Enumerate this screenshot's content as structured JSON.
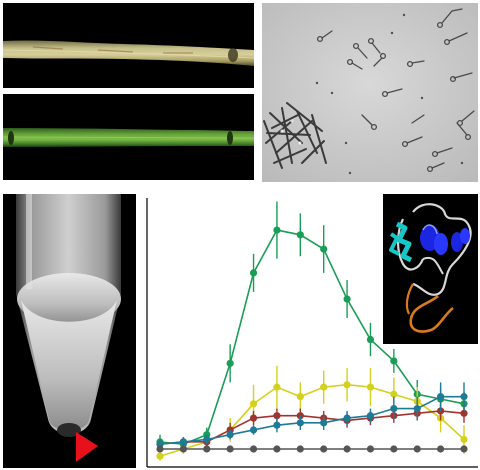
{
  "panels": {
    "top_left_stem": "dried-stem-segment",
    "middle_left_stem": "green-stem-segment",
    "top_right": "microscopy-hyphae",
    "bottom_left": "centrifuge-tube-with-pellet",
    "bottom_right": "line-chart-with-protein-inset"
  },
  "colors": {
    "green": "#1a9d57",
    "yellow": "#d4d11e",
    "red": "#a13331",
    "blue": "#1f7a96",
    "gray": "#555555",
    "arrow": "#e8111b"
  },
  "chart_data": {
    "type": "line",
    "x": [
      1,
      2,
      3,
      4,
      5,
      6,
      7,
      8,
      9,
      10,
      11,
      12,
      13,
      14
    ],
    "ylim": [
      0,
      10
    ],
    "grid": false,
    "series": [
      {
        "color": "green",
        "values": [
          0.3,
          0.2,
          0.6,
          3.6,
          7.4,
          9.2,
          9.0,
          8.4,
          6.3,
          4.6,
          3.7,
          2.3,
          2.1,
          1.9
        ],
        "errors": [
          0.3,
          0.2,
          0.3,
          0.8,
          0.8,
          1.2,
          0.9,
          1.0,
          0.8,
          0.7,
          0.5,
          0.6,
          0.5,
          0.5
        ]
      },
      {
        "color": "yellow",
        "values": [
          -0.3,
          0,
          0.3,
          0.8,
          1.9,
          2.6,
          2.2,
          2.6,
          2.7,
          2.6,
          2.3,
          2.0,
          1.3,
          0.4
        ],
        "errors": [
          0.2,
          0.2,
          0.2,
          0.5,
          0.8,
          0.9,
          0.6,
          0.7,
          0.7,
          0.8,
          0.7,
          0.6,
          0.6,
          0.6
        ]
      },
      {
        "color": "red",
        "values": [
          0.2,
          0.3,
          0.3,
          0.8,
          1.3,
          1.4,
          1.4,
          1.3,
          1.2,
          1.3,
          1.4,
          1.5,
          1.6,
          1.5
        ],
        "errors": [
          0.2,
          0.2,
          0.2,
          0.3,
          0.3,
          0.3,
          0.3,
          0.3,
          0.3,
          0.3,
          0.3,
          0.3,
          0.4,
          0.4
        ]
      },
      {
        "color": "blue",
        "values": [
          0.2,
          0.3,
          0.4,
          0.6,
          0.8,
          1.0,
          1.1,
          1.1,
          1.3,
          1.4,
          1.7,
          1.7,
          2.2,
          2.2
        ],
        "errors": [
          0.2,
          0.2,
          0.2,
          0.2,
          0.2,
          0.3,
          0.3,
          0.3,
          0.3,
          0.3,
          0.5,
          0.5,
          0.6,
          0.6
        ]
      },
      {
        "color": "gray",
        "values": [
          0,
          0,
          0,
          0,
          0,
          0,
          0,
          0,
          0,
          0,
          0,
          0,
          0,
          0
        ],
        "errors": [
          0,
          0,
          0,
          0,
          0,
          0,
          0,
          0,
          0,
          0,
          0,
          0,
          0,
          0
        ]
      }
    ]
  }
}
